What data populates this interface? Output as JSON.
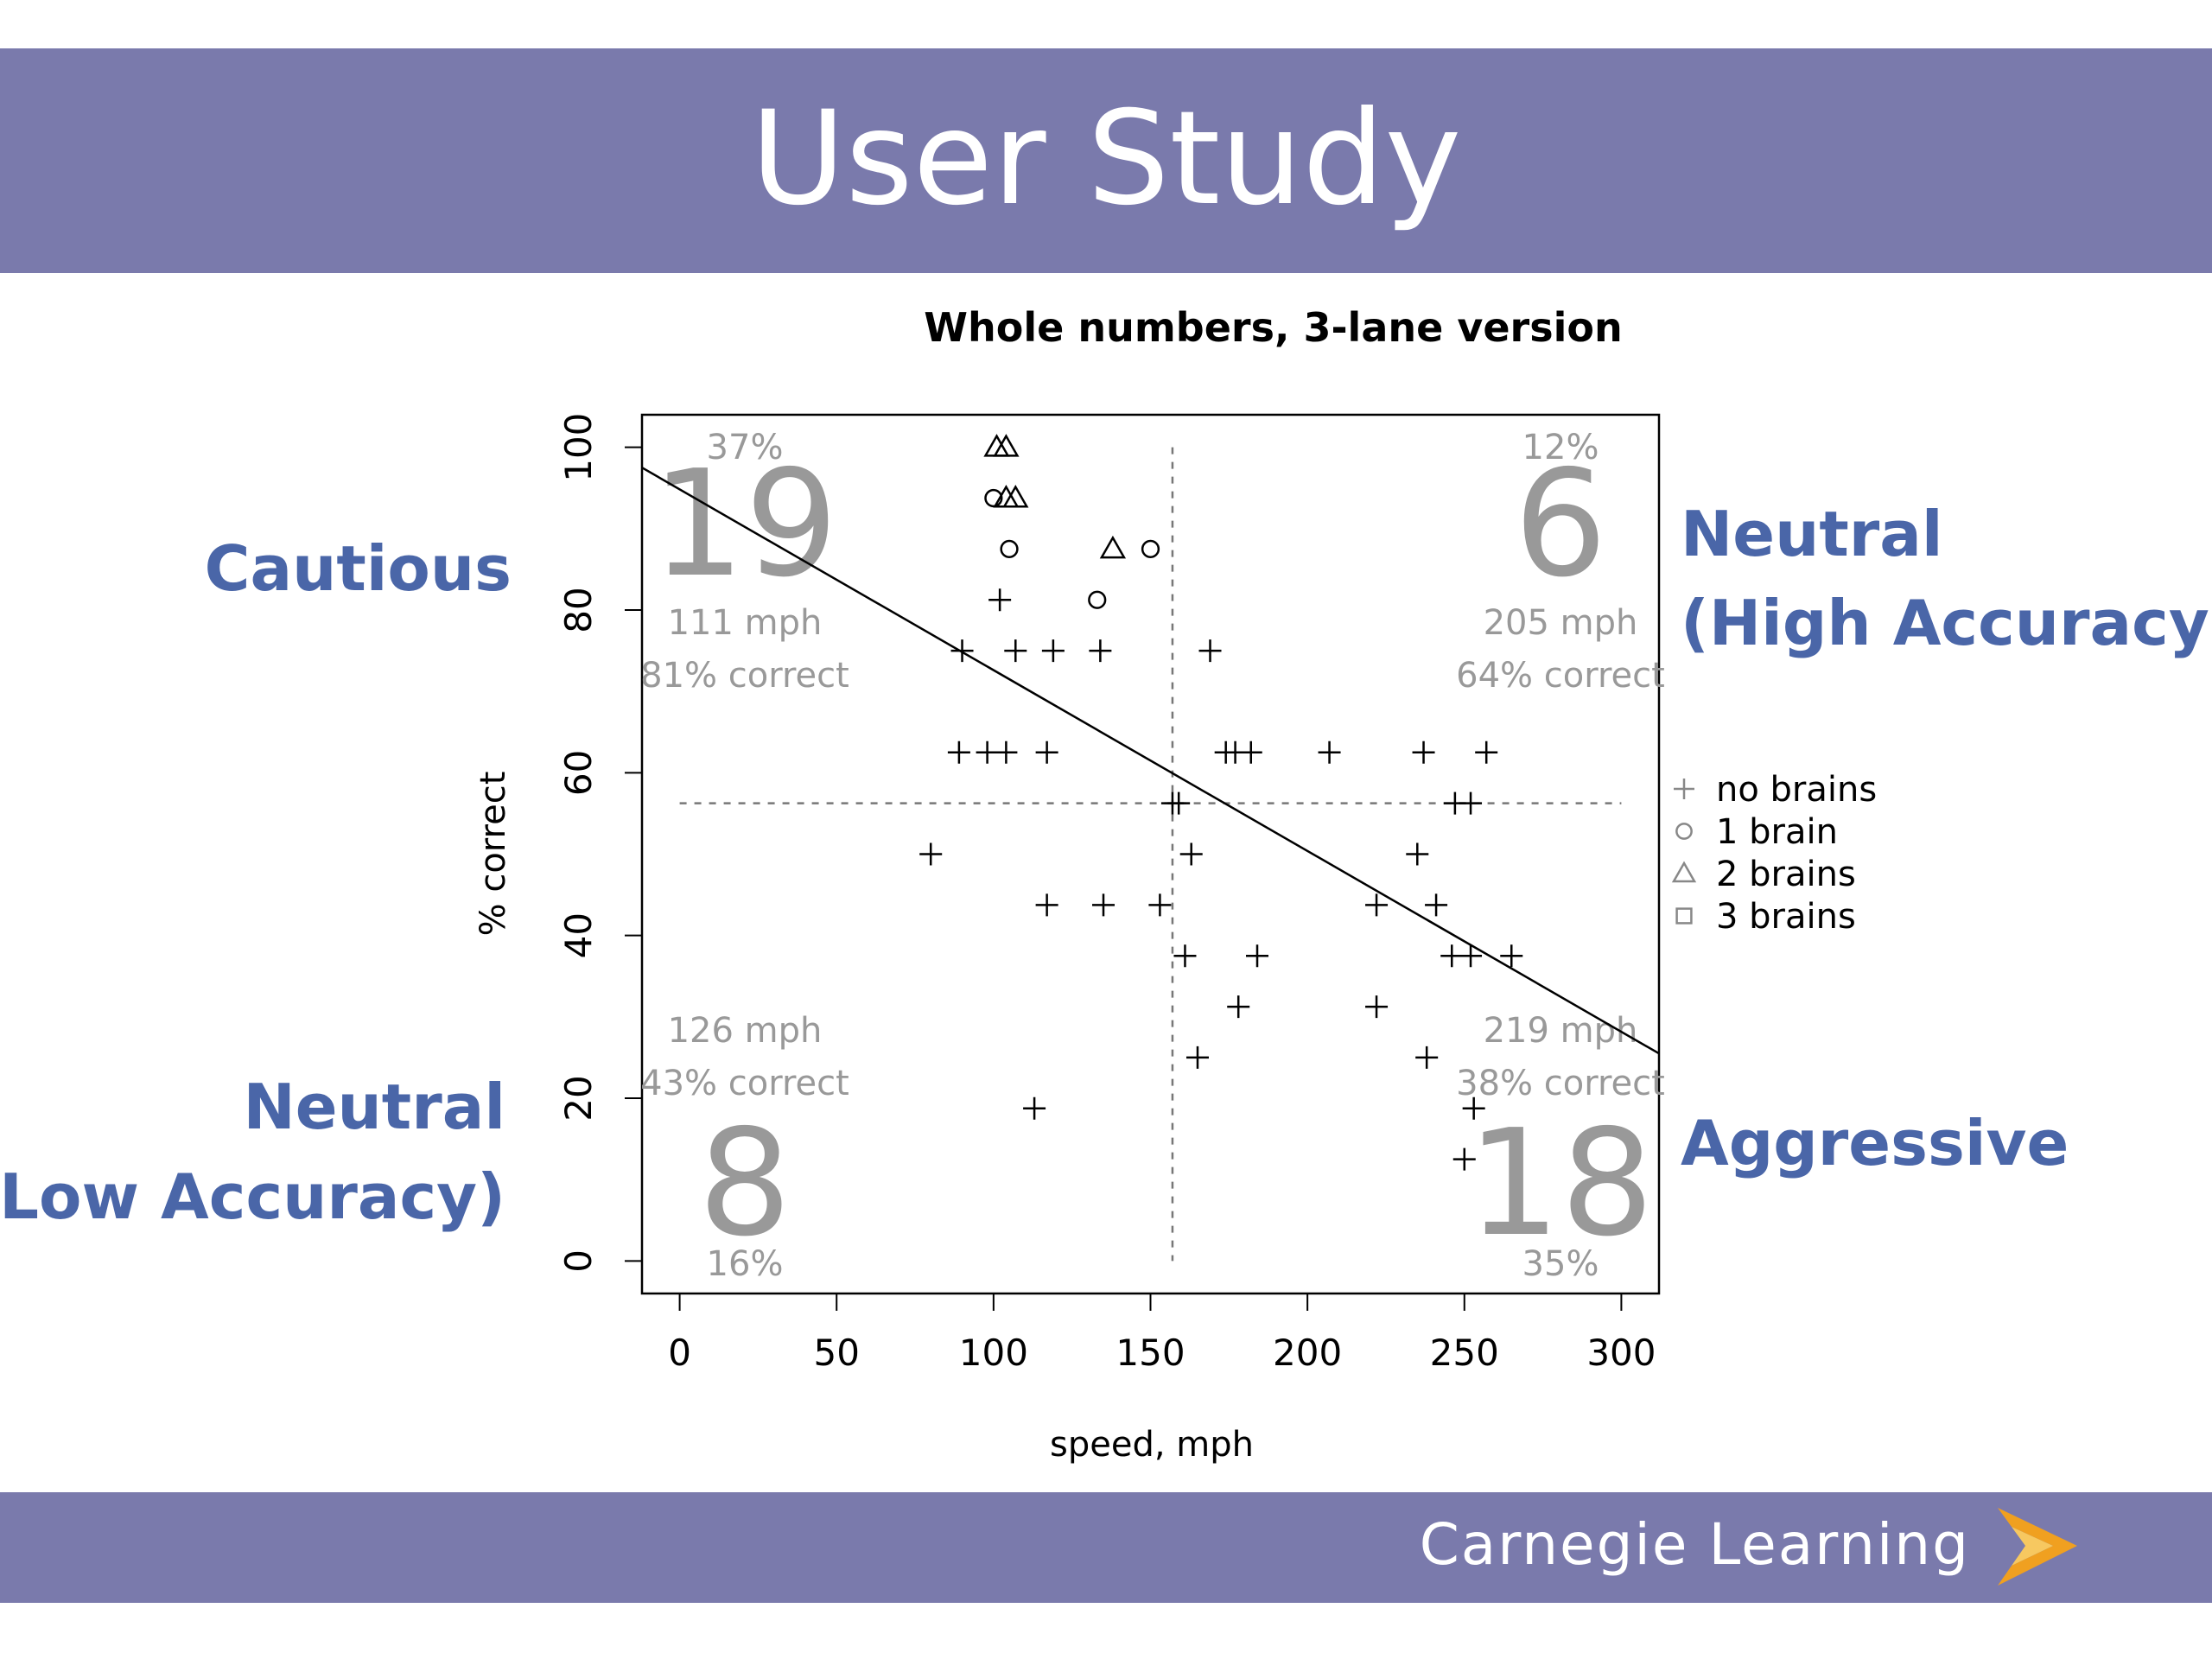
{
  "slide": {
    "title": "User Study",
    "brand": "Carnegie Learning",
    "labels": {
      "top_left": "Cautious",
      "top_right_1": "Neutral",
      "top_right_2": "(High Accuracy)",
      "bottom_left_1": "Neutral",
      "bottom_left_2": "(Low Accuracy)",
      "bottom_right": "Aggressive"
    }
  },
  "colors": {
    "banner": "#7a7aac",
    "label_blue": "#4a66a8",
    "quadrant_gray": "#999999",
    "logo_orange": "#f0a020"
  },
  "chart_data": {
    "type": "scatter",
    "title": "Whole numbers, 3-lane version",
    "xlabel": "speed, mph",
    "ylabel": "% correct",
    "xlim": [
      -12,
      312
    ],
    "ylim": [
      -4,
      104
    ],
    "xticks": [
      0,
      50,
      100,
      150,
      200,
      250,
      300
    ],
    "yticks": [
      0,
      20,
      40,
      60,
      80,
      100
    ],
    "x_ref_line": 157,
    "y_ref_line": 56.25,
    "fit_line": {
      "x1": -12,
      "y1": 97.5,
      "x2": 312,
      "y2": 25.5
    },
    "quadrants": [
      {
        "pos": "top-left",
        "share": "37%",
        "count": "19",
        "speed": "111 mph",
        "correct": "81% correct"
      },
      {
        "pos": "top-right",
        "share": "12%",
        "count": "6",
        "speed": "205 mph",
        "correct": "64% correct"
      },
      {
        "pos": "bottom-left",
        "share": "16%",
        "count": "8",
        "speed": "126 mph",
        "correct": "43% correct"
      },
      {
        "pos": "bottom-right",
        "share": "35%",
        "count": "18",
        "speed": "219 mph",
        "correct": "38% correct"
      }
    ],
    "legend": {
      "placement": "right",
      "entries": [
        {
          "symbol": "plus",
          "label": "no brains"
        },
        {
          "symbol": "circle",
          "label": "1 brain"
        },
        {
          "symbol": "triangle",
          "label": "2 brains"
        },
        {
          "symbol": "square",
          "label": "3 brains"
        }
      ]
    },
    "series": [
      {
        "name": "no brains",
        "symbol": "plus",
        "points": [
          [
            102,
            81.25
          ],
          [
            90,
            75
          ],
          [
            107,
            75
          ],
          [
            119,
            75
          ],
          [
            134,
            75
          ],
          [
            169,
            75
          ],
          [
            89,
            62.5
          ],
          [
            98,
            62.5
          ],
          [
            104,
            62.5
          ],
          [
            117,
            62.5
          ],
          [
            174,
            62.5
          ],
          [
            177,
            62.5
          ],
          [
            182,
            62.5
          ],
          [
            207,
            62.5
          ],
          [
            237,
            62.5
          ],
          [
            257,
            62.5
          ],
          [
            157,
            56.25
          ],
          [
            159,
            56.25
          ],
          [
            247,
            56.25
          ],
          [
            252,
            56.25
          ],
          [
            80,
            50
          ],
          [
            163,
            50
          ],
          [
            235,
            50
          ],
          [
            117,
            43.75
          ],
          [
            135,
            43.75
          ],
          [
            153,
            43.75
          ],
          [
            222,
            43.75
          ],
          [
            241,
            43.75
          ],
          [
            161,
            37.5
          ],
          [
            184,
            37.5
          ],
          [
            246,
            37.5
          ],
          [
            252,
            37.5
          ],
          [
            265,
            37.5
          ],
          [
            178,
            31.25
          ],
          [
            222,
            31.25
          ],
          [
            165,
            25
          ],
          [
            238,
            25
          ],
          [
            113,
            18.75
          ],
          [
            253,
            18.75
          ],
          [
            250,
            12.5
          ]
        ]
      },
      {
        "name": "1 brain",
        "symbol": "circle",
        "points": [
          [
            100,
            93.75
          ],
          [
            105,
            87.5
          ],
          [
            150,
            87.5
          ],
          [
            133,
            81.25
          ]
        ]
      },
      {
        "name": "2 brains",
        "symbol": "triangle",
        "points": [
          [
            101,
            100
          ],
          [
            104,
            100
          ],
          [
            104,
            93.75
          ],
          [
            107,
            93.75
          ],
          [
            138,
            87.5
          ]
        ]
      },
      {
        "name": "3 brains",
        "symbol": "square",
        "points": []
      }
    ]
  }
}
